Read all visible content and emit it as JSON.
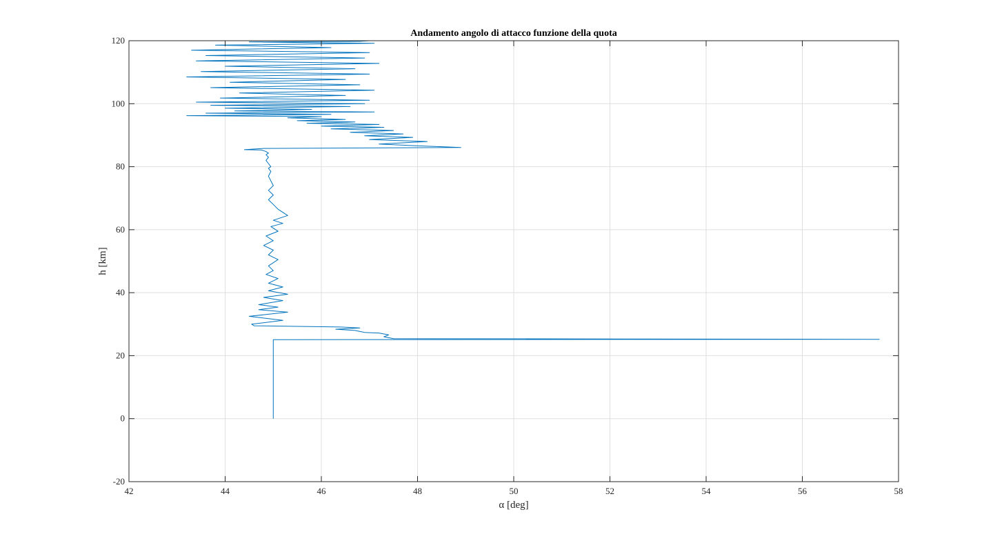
{
  "chart_data": {
    "type": "line",
    "title": "Andamento angolo di attacco funzione della quota",
    "xlabel": "α [deg]",
    "ylabel": "h [km]",
    "xlim": [
      42,
      58
    ],
    "ylim": [
      -20,
      120
    ],
    "xticks": [
      42,
      44,
      46,
      48,
      50,
      52,
      54,
      56,
      58
    ],
    "yticks": [
      -20,
      0,
      20,
      40,
      60,
      80,
      100,
      120
    ],
    "xtick_labels": [
      "42",
      "44",
      "46",
      "48",
      "50",
      "52",
      "54",
      "56",
      "58"
    ],
    "ytick_labels": [
      "-20",
      "0",
      "20",
      "40",
      "60",
      "80",
      "100",
      "120"
    ],
    "grid": true,
    "legend": "none",
    "series": [
      {
        "color": "#0072bd",
        "x": [
          45.0,
          45.0,
          45.0,
          57.6,
          47.5,
          47.3,
          47.4,
          47.2,
          47.0,
          46.9,
          46.7,
          46.3,
          46.8,
          46.4,
          44.6,
          44.55,
          45.2,
          44.5,
          45.3,
          44.7,
          45.1,
          44.7,
          45.2,
          44.8,
          45.3,
          44.9,
          45.2,
          44.9,
          45.1,
          44.85,
          45.0,
          44.9,
          45.1,
          44.9,
          45.0,
          44.8,
          45.0,
          44.85,
          45.1,
          44.95,
          45.2,
          45.0,
          45.3,
          45.1,
          45.0,
          44.9,
          45.0,
          44.9,
          45.0,
          44.95,
          44.9,
          44.95,
          44.9,
          44.95,
          44.9,
          44.85,
          44.9,
          44.85,
          44.9,
          44.85,
          44.8,
          44.75,
          44.4,
          44.8,
          48.9,
          47.9,
          47.2,
          48.2,
          47.0,
          47.9,
          46.9,
          47.7,
          46.6,
          47.5,
          46.2,
          47.3,
          46.0,
          47.2,
          45.7,
          46.7,
          45.5,
          46.5,
          45.3,
          46.0,
          43.2,
          46.2,
          43.6,
          47.1,
          44.2,
          45.8,
          44.0,
          46.6,
          43.7,
          46.9,
          43.4,
          47.0,
          43.9,
          46.5,
          44.3,
          47.1,
          43.7,
          46.8,
          44.1,
          46.5,
          43.2,
          47.0,
          43.5,
          46.7,
          44.0,
          47.2,
          43.4,
          46.9,
          43.6,
          47.0,
          43.3,
          46.2,
          43.8,
          47.1,
          44.5,
          46.8,
          47.0
        ],
        "y": [
          0.0,
          25.0,
          25.1,
          25.2,
          25.4,
          26.0,
          26.6,
          27.2,
          27.3,
          27.4,
          28.0,
          28.4,
          28.8,
          29.1,
          29.5,
          30.0,
          31.2,
          32.5,
          33.8,
          34.6,
          35.4,
          36.2,
          37.5,
          38.5,
          39.5,
          40.6,
          41.8,
          43.0,
          44.5,
          45.8,
          47.0,
          48.5,
          50.5,
          52.0,
          53.5,
          55.0,
          56.5,
          58.0,
          59.5,
          61.0,
          62.0,
          63.0,
          64.5,
          66.5,
          68.0,
          69.5,
          71.0,
          72.5,
          74.0,
          75.5,
          77.0,
          78.5,
          79.5,
          80.0,
          81.0,
          82.0,
          83.0,
          83.8,
          84.3,
          84.8,
          85.1,
          85.3,
          85.4,
          85.8,
          86.1,
          86.7,
          87.2,
          88.0,
          88.6,
          89.3,
          89.8,
          90.4,
          90.9,
          91.5,
          92.0,
          92.5,
          92.9,
          93.4,
          93.8,
          94.2,
          94.6,
          95.0,
          95.5,
          95.9,
          96.2,
          96.6,
          97.0,
          97.4,
          97.7,
          98.2,
          98.6,
          99.1,
          99.5,
          100.0,
          100.5,
          101.1,
          101.8,
          102.6,
          103.4,
          104.3,
          105.1,
          106.0,
          106.8,
          107.7,
          108.5,
          109.4,
          110.2,
          111.1,
          111.9,
          112.8,
          113.6,
          114.5,
          115.3,
          116.2,
          117.0,
          117.8,
          118.6,
          119.2,
          119.6,
          119.8,
          120.0
        ]
      }
    ]
  }
}
